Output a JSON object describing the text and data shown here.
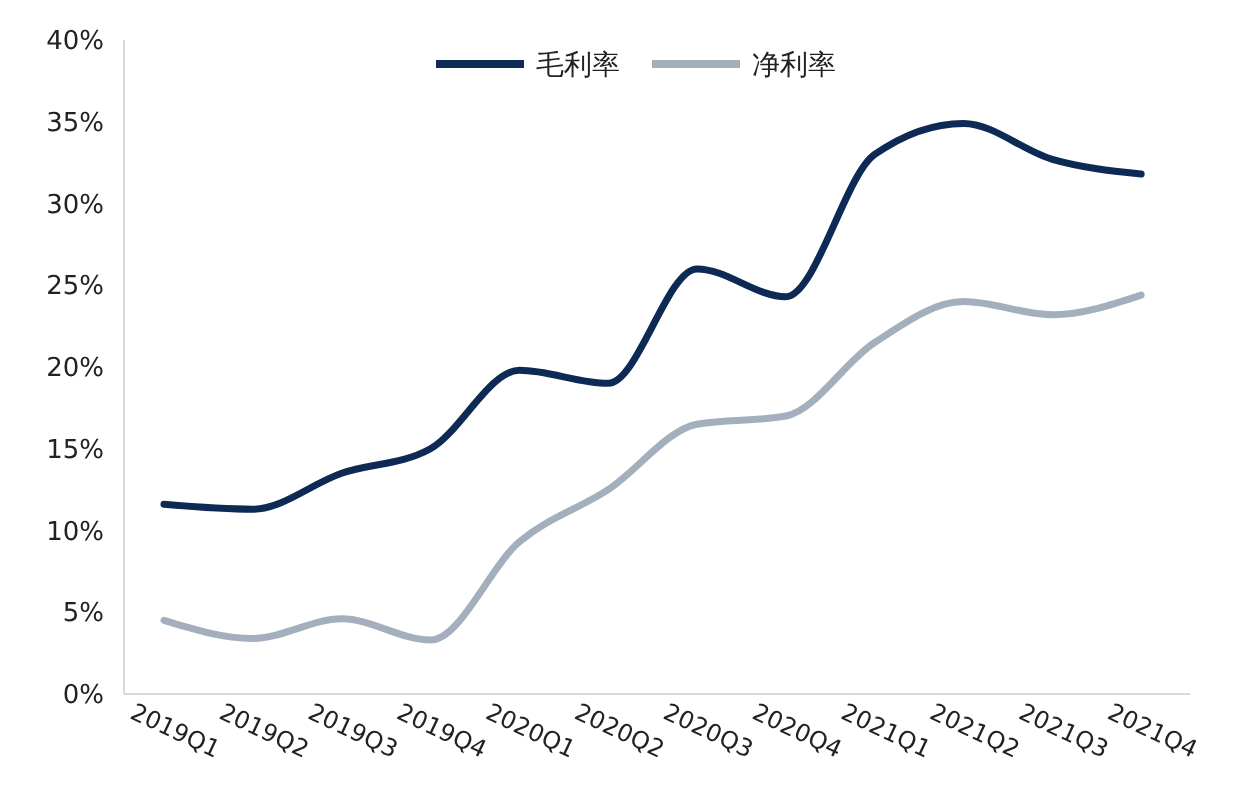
{
  "chart_data": {
    "type": "line",
    "categories": [
      "2019Q1",
      "2019Q2",
      "2019Q3",
      "2019Q4",
      "2020Q1",
      "2020Q2",
      "2020Q3",
      "2020Q4",
      "2021Q1",
      "2021Q2",
      "2021Q3",
      "2021Q4"
    ],
    "series": [
      {
        "name": "毛利率",
        "color": "#0d2a55",
        "values": [
          11.6,
          11.3,
          13.5,
          15.0,
          19.8,
          19.0,
          26.0,
          24.3,
          33.0,
          34.9,
          32.7,
          31.8
        ]
      },
      {
        "name": "净利率",
        "color": "#a3afbd",
        "values": [
          4.5,
          3.4,
          4.6,
          3.3,
          9.3,
          12.5,
          16.5,
          17.0,
          21.5,
          24.0,
          23.2,
          24.4
        ]
      }
    ],
    "ylim": [
      0,
      40
    ],
    "yticks": [
      {
        "value": 0,
        "label": "0%"
      },
      {
        "value": 5,
        "label": "5%"
      },
      {
        "value": 10,
        "label": "10%"
      },
      {
        "value": 15,
        "label": "15%"
      },
      {
        "value": 20,
        "label": "20%"
      },
      {
        "value": 25,
        "label": "25%"
      },
      {
        "value": 30,
        "label": "30%"
      },
      {
        "value": 35,
        "label": "35%"
      },
      {
        "value": 40,
        "label": "40%"
      }
    ],
    "grid": false,
    "legend": "top",
    "marker": "none",
    "line_style": "solid"
  }
}
